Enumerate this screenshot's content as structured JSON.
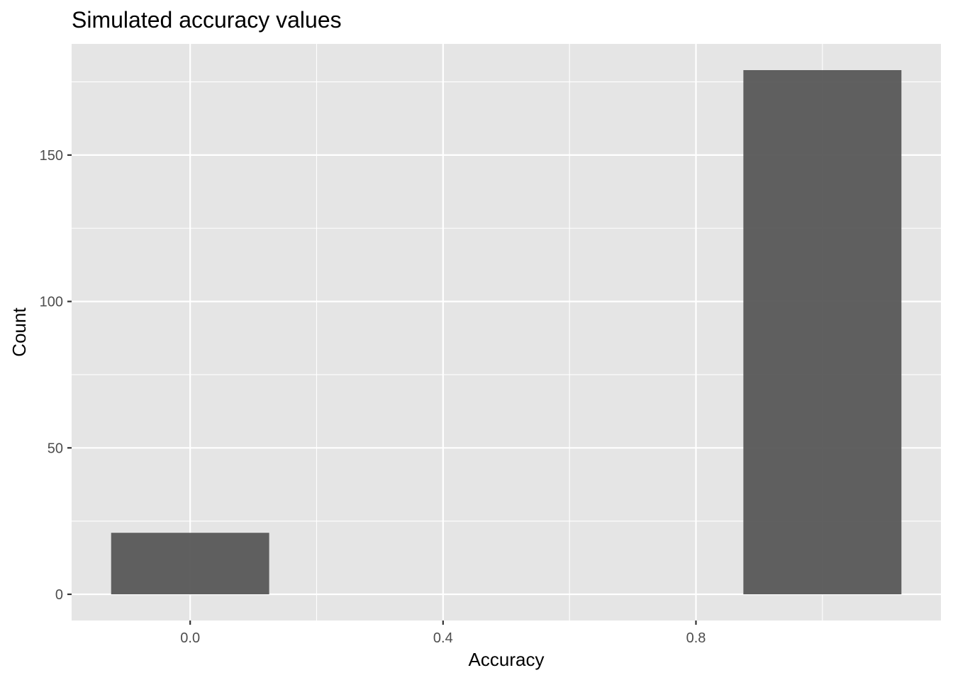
{
  "chart_data": {
    "type": "bar",
    "title": "Simulated accuracy values",
    "xlabel": "Accuracy",
    "ylabel": "Count",
    "bars": [
      {
        "x": 0.0,
        "width": 0.25,
        "value": 21
      },
      {
        "x": 1.0,
        "width": 0.25,
        "value": 179
      }
    ],
    "xlim": [
      -0.1875,
      1.1875
    ],
    "ylim": [
      -8.95,
      187.95
    ],
    "x_major_ticks": [
      0.0,
      0.4,
      0.8
    ],
    "x_tick_labels": [
      "0.0",
      "0.4",
      "0.8"
    ],
    "x_minor_ticks": [
      0.2,
      0.6,
      1.0
    ],
    "y_major_ticks": [
      0,
      50,
      100,
      150
    ],
    "y_tick_labels": [
      "0",
      "50",
      "100",
      "150"
    ],
    "y_minor_ticks": [
      25,
      75,
      125,
      175
    ],
    "grid": true,
    "colors": {
      "panel_background": "#e5e5e5",
      "grid": "#ffffff",
      "bar_fill": "#595959",
      "tick_label": "#4d4d4d",
      "tick_mark": "#333333"
    }
  }
}
